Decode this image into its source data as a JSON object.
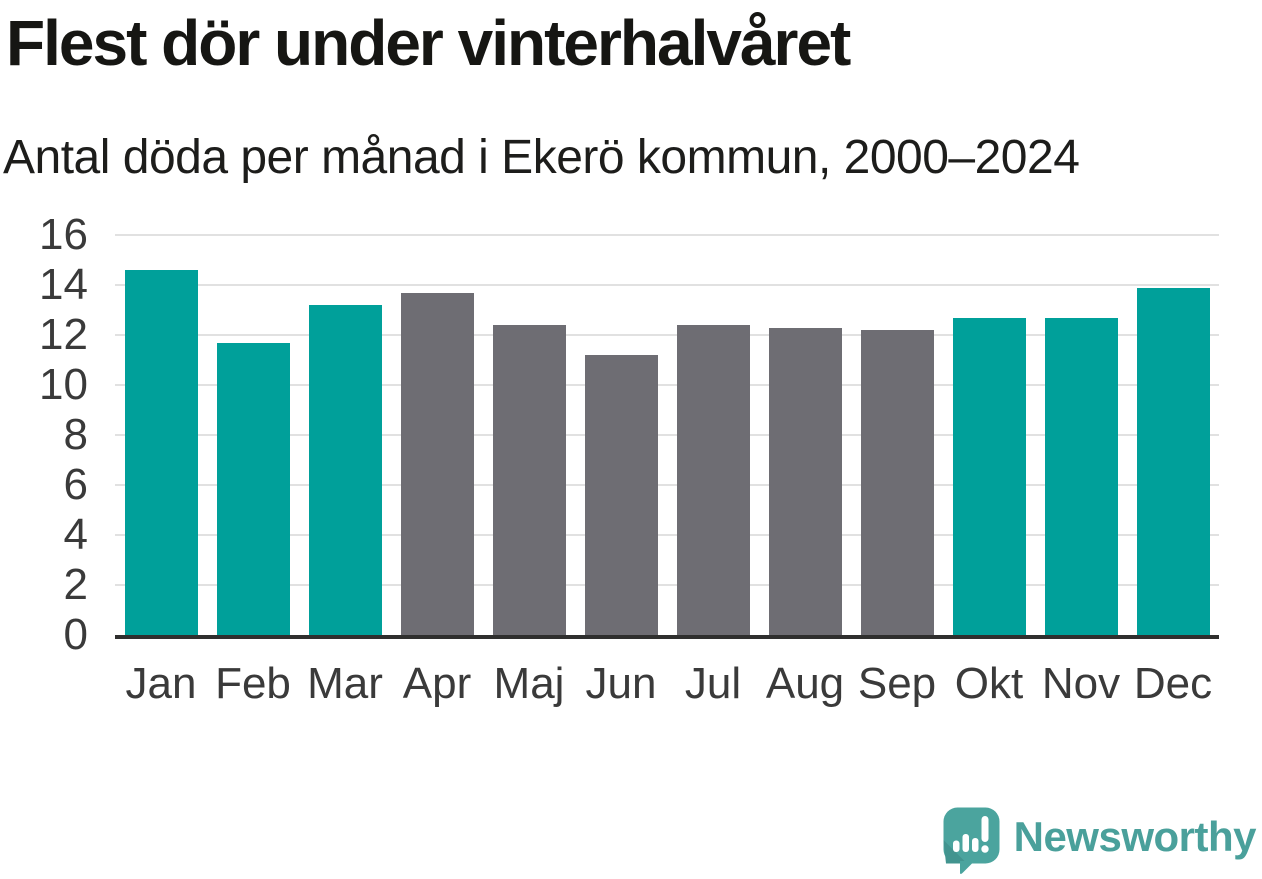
{
  "header": {
    "title": "Flest dör under vinterhalvåret",
    "subtitle": "Antal döda per månad i Ekerö kommun, 2000–2024"
  },
  "chart_data": {
    "type": "bar",
    "categories": [
      "Jan",
      "Feb",
      "Mar",
      "Apr",
      "Maj",
      "Jun",
      "Jul",
      "Aug",
      "Sep",
      "Okt",
      "Nov",
      "Dec"
    ],
    "values": [
      14.6,
      11.7,
      13.2,
      13.7,
      12.4,
      11.2,
      12.4,
      12.3,
      12.2,
      12.7,
      12.7,
      13.9
    ],
    "highlighted_categories": [
      "Jan",
      "Feb",
      "Mar",
      "Okt",
      "Nov",
      "Dec"
    ],
    "title": "Flest dör under vinterhalvåret",
    "subtitle": "Antal döda per månad i Ekerö kommun, 2000–2024",
    "xlabel": "",
    "ylabel": "",
    "ylim": [
      0,
      16
    ],
    "yticks": [
      0,
      2,
      4,
      6,
      8,
      10,
      12,
      14,
      16
    ],
    "grid": true,
    "legend_position": "none",
    "colors": {
      "highlight": "#00a09a",
      "default": "#6e6d73",
      "gridline": "#e1e1e1",
      "axis": "#2f2f2e"
    }
  },
  "footer": {
    "brand": "Newsworthy",
    "logo_icon": "newsworthy-speech-bubble-bar-chart-icon",
    "brand_color": "#4aa09b"
  }
}
